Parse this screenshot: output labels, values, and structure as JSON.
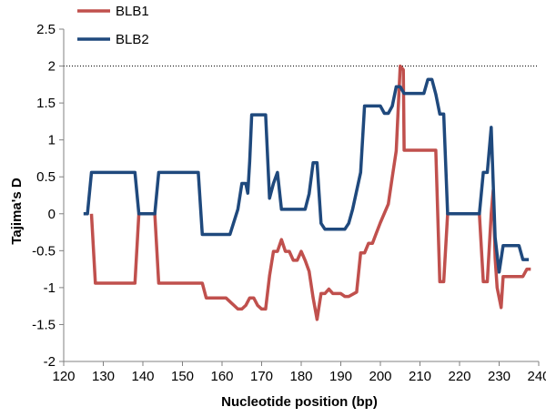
{
  "chart_data": {
    "type": "line",
    "title": "",
    "xlabel": "Nucleotide position (bp)",
    "ylabel": "Tajima's D",
    "xlim": [
      120,
      240
    ],
    "ylim": [
      -2,
      2.5
    ],
    "x_ticks": [
      120,
      130,
      140,
      150,
      160,
      170,
      180,
      190,
      200,
      210,
      220,
      230,
      240
    ],
    "y_ticks": [
      -2,
      -1.5,
      -1,
      -0.5,
      0,
      0.5,
      1,
      1.5,
      2,
      2.5
    ],
    "x_tick_labels": [
      "120",
      "130",
      "140",
      "150",
      "160",
      "170",
      "180",
      "190",
      "200",
      "210",
      "220",
      "230",
      "240"
    ],
    "y_tick_labels": [
      "-2",
      "-1.5",
      "-1",
      "-0.5",
      "0",
      "0.5",
      "1",
      "1.5",
      "2",
      "2.5"
    ],
    "grid": false,
    "reference_line": {
      "y": 2,
      "style": "dotted"
    },
    "legend_position": "top-left",
    "series": [
      {
        "name": "BLB1",
        "color": "#c0504d",
        "points": [
          [
            127,
            0
          ],
          [
            128,
            -0.94
          ],
          [
            138,
            -0.94
          ],
          [
            139,
            0
          ],
          [
            143,
            0
          ],
          [
            144,
            -0.94
          ],
          [
            155,
            -0.94
          ],
          [
            156,
            -1.14
          ],
          [
            161,
            -1.14
          ],
          [
            163,
            -1.24
          ],
          [
            164,
            -1.29
          ],
          [
            165,
            -1.29
          ],
          [
            166,
            -1.24
          ],
          [
            167,
            -1.14
          ],
          [
            168,
            -1.14
          ],
          [
            169,
            -1.24
          ],
          [
            170,
            -1.29
          ],
          [
            171,
            -1.29
          ],
          [
            172,
            -0.84
          ],
          [
            173,
            -0.51
          ],
          [
            174,
            -0.51
          ],
          [
            175,
            -0.35
          ],
          [
            176,
            -0.51
          ],
          [
            177,
            -0.51
          ],
          [
            178,
            -0.63
          ],
          [
            179,
            -0.63
          ],
          [
            180,
            -0.51
          ],
          [
            181,
            -0.63
          ],
          [
            182,
            -0.78
          ],
          [
            183,
            -1.14
          ],
          [
            184,
            -1.43
          ],
          [
            185,
            -1.08
          ],
          [
            186,
            -1.08
          ],
          [
            187,
            -1.02
          ],
          [
            188,
            -1.08
          ],
          [
            190,
            -1.08
          ],
          [
            191,
            -1.12
          ],
          [
            192,
            -1.12
          ],
          [
            194,
            -1.06
          ],
          [
            195,
            -0.53
          ],
          [
            196,
            -0.53
          ],
          [
            197,
            -0.4
          ],
          [
            198,
            -0.4
          ],
          [
            199,
            -0.26
          ],
          [
            200,
            -0.12
          ],
          [
            202,
            0.13
          ],
          [
            203,
            0.5
          ],
          [
            204,
            0.85
          ],
          [
            205,
            2.0
          ],
          [
            205.8,
            1.95
          ],
          [
            206,
            0.86
          ],
          [
            214,
            0.86
          ],
          [
            215,
            -0.92
          ],
          [
            216,
            -0.92
          ],
          [
            217,
            0
          ],
          [
            225,
            0
          ],
          [
            226,
            -0.92
          ],
          [
            227,
            -0.92
          ],
          [
            228,
            0
          ],
          [
            228.5,
            0.32
          ],
          [
            229,
            -0.6
          ],
          [
            229.5,
            -1.0
          ],
          [
            230.5,
            -1.27
          ],
          [
            231,
            -0.85
          ],
          [
            236,
            -0.85
          ],
          [
            237,
            -0.75
          ],
          [
            238,
            -0.75
          ]
        ]
      },
      {
        "name": "BLB2",
        "color": "#1f497d",
        "points": [
          [
            125,
            0
          ],
          [
            126,
            0
          ],
          [
            127,
            0.56
          ],
          [
            138,
            0.56
          ],
          [
            139,
            0
          ],
          [
            143,
            0
          ],
          [
            144,
            0.56
          ],
          [
            154,
            0.56
          ],
          [
            155,
            -0.28
          ],
          [
            161,
            -0.28
          ],
          [
            162,
            -0.28
          ],
          [
            164,
            0.06
          ],
          [
            165,
            0.41
          ],
          [
            166,
            0.41
          ],
          [
            166.5,
            0.28
          ],
          [
            167,
            0.71
          ],
          [
            167.5,
            1.34
          ],
          [
            171,
            1.34
          ],
          [
            172,
            0.21
          ],
          [
            173,
            0.41
          ],
          [
            174,
            0.56
          ],
          [
            175,
            0.06
          ],
          [
            177,
            0.06
          ],
          [
            181,
            0.06
          ],
          [
            182,
            0.27
          ],
          [
            183,
            0.69
          ],
          [
            184,
            0.69
          ],
          [
            185,
            -0.13
          ],
          [
            186,
            -0.21
          ],
          [
            191,
            -0.21
          ],
          [
            192,
            -0.13
          ],
          [
            193,
            0.06
          ],
          [
            195,
            0.56
          ],
          [
            196,
            1.46
          ],
          [
            200,
            1.46
          ],
          [
            201,
            1.36
          ],
          [
            202,
            1.36
          ],
          [
            203,
            1.46
          ],
          [
            204,
            1.72
          ],
          [
            205,
            1.72
          ],
          [
            206,
            1.63
          ],
          [
            210,
            1.63
          ],
          [
            211,
            1.63
          ],
          [
            212,
            1.82
          ],
          [
            213,
            1.82
          ],
          [
            214,
            1.62
          ],
          [
            215,
            1.35
          ],
          [
            216,
            1.35
          ],
          [
            217,
            0
          ],
          [
            218,
            0
          ],
          [
            224,
            0
          ],
          [
            225,
            0
          ],
          [
            226,
            0.56
          ],
          [
            227,
            0.56
          ],
          [
            228,
            1.17
          ],
          [
            229,
            -0.32
          ],
          [
            230,
            -0.79
          ],
          [
            231,
            -0.43
          ],
          [
            235,
            -0.43
          ],
          [
            236,
            -0.62
          ],
          [
            237.5,
            -0.62
          ]
        ]
      }
    ]
  }
}
